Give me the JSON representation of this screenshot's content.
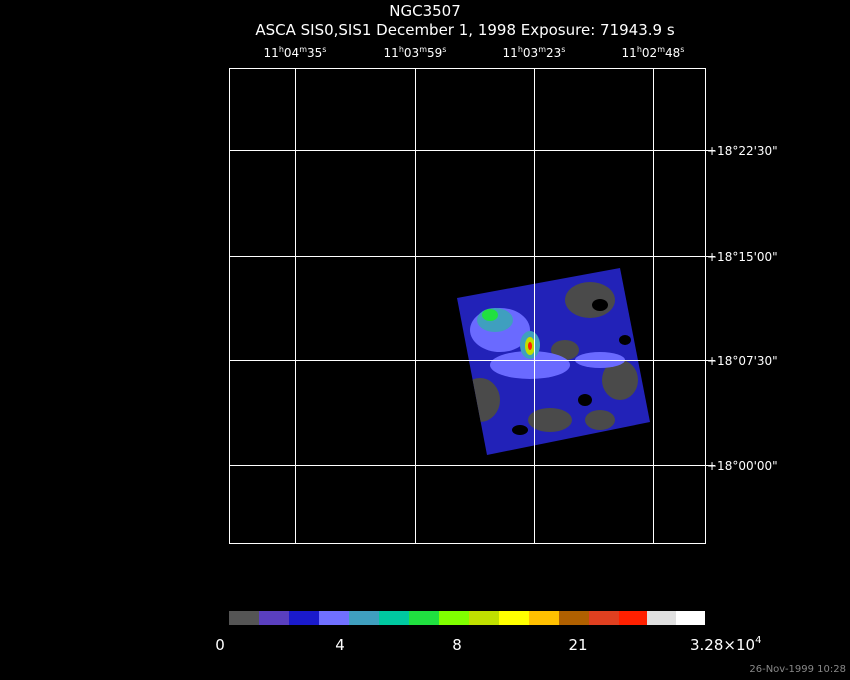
{
  "header": {
    "title": "NGC3507",
    "subtitle": "ASCA SIS0,SIS1 December 1, 1998 Exposure: 71943.9 s"
  },
  "ra_labels": [
    [
      "11",
      "h",
      "04",
      "m",
      "35",
      "s"
    ],
    [
      "11",
      "h",
      "03",
      "m",
      "59",
      "s"
    ],
    [
      "11",
      "h",
      "03",
      "m",
      "23",
      "s"
    ],
    [
      "11",
      "h",
      "02",
      "m",
      "48",
      "s"
    ]
  ],
  "dec_labels": [
    "+18°22'30\"",
    "+18°15'00\"",
    "+18°07'30\"",
    "+18°00'00\""
  ],
  "colorbar": {
    "labels": [
      [
        "0"
      ],
      [
        "4"
      ],
      [
        "8"
      ],
      [
        "21"
      ],
      [
        "3.28×10",
        "4"
      ]
    ]
  },
  "timestamp": "26-Nov-1999 10:28"
}
